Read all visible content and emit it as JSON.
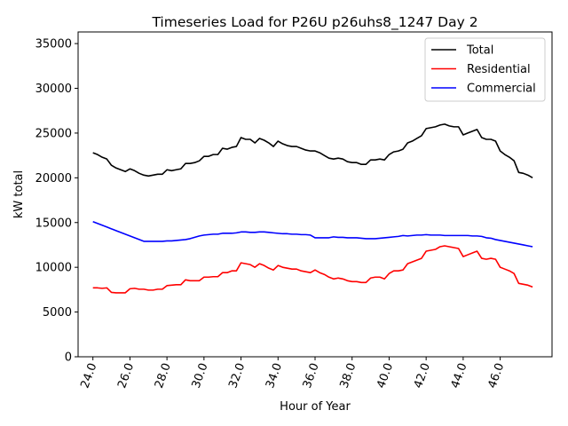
{
  "chart_data": {
    "type": "line",
    "title": "Timeseries Load for P26U p26uhs8_1247  Day 2",
    "xlabel": "Hour of Year",
    "ylabel": "kW total",
    "xlim": [
      23.2,
      48.8
    ],
    "ylim": [
      0,
      36300
    ],
    "x_ticks": [
      24,
      26,
      28,
      30,
      32,
      34,
      36,
      38,
      40,
      42,
      44,
      46
    ],
    "x_tick_labels": [
      "24.0",
      "26.0",
      "28.0",
      "30.0",
      "32.0",
      "34.0",
      "36.0",
      "38.0",
      "40.0",
      "42.0",
      "44.0",
      "46.0"
    ],
    "y_ticks": [
      0,
      5000,
      10000,
      15000,
      20000,
      25000,
      30000,
      35000
    ],
    "y_tick_labels": [
      "0",
      "5000",
      "10000",
      "15000",
      "20000",
      "25000",
      "30000",
      "35000"
    ],
    "grid": false,
    "legend_position": "top-right",
    "x_start": 24.0,
    "x_step": 0.25,
    "series": [
      {
        "name": "Total",
        "color": "#000000",
        "values": [
          22800,
          22600,
          22300,
          22100,
          21400,
          21100,
          20900,
          20700,
          21000,
          20800,
          20500,
          20300,
          20200,
          20300,
          20400,
          20400,
          20900,
          20800,
          20900,
          21000,
          21600,
          21600,
          21700,
          21900,
          22400,
          22400,
          22600,
          22600,
          23300,
          23200,
          23400,
          23500,
          24500,
          24300,
          24300,
          23900,
          24400,
          24200,
          23900,
          23500,
          24100,
          23800,
          23600,
          23500,
          23500,
          23300,
          23100,
          23000,
          23000,
          22800,
          22500,
          22200,
          22100,
          22200,
          22100,
          21800,
          21700,
          21700,
          21500,
          21500,
          22000,
          22000,
          22100,
          22000,
          22600,
          22900,
          23000,
          23200,
          23900,
          24100,
          24400,
          24700,
          25500,
          25600,
          25700,
          25900,
          26000,
          25800,
          25700,
          25700,
          24800,
          25000,
          25200,
          25400,
          24500,
          24300,
          24300,
          24100,
          23000,
          22600,
          22300,
          21900,
          20600,
          20500,
          20300,
          20000
        ]
      },
      {
        "name": "Residential",
        "color": "#ff0000",
        "values": [
          7700,
          7700,
          7650,
          7700,
          7200,
          7150,
          7150,
          7150,
          7600,
          7650,
          7550,
          7550,
          7450,
          7450,
          7550,
          7550,
          7950,
          8000,
          8050,
          8050,
          8600,
          8500,
          8500,
          8500,
          8900,
          8900,
          8950,
          8950,
          9400,
          9400,
          9600,
          9600,
          10500,
          10400,
          10300,
          10000,
          10400,
          10200,
          9900,
          9700,
          10200,
          10000,
          9900,
          9800,
          9800,
          9600,
          9500,
          9400,
          9700,
          9400,
          9200,
          8900,
          8700,
          8800,
          8700,
          8500,
          8400,
          8400,
          8300,
          8300,
          8800,
          8900,
          8900,
          8700,
          9300,
          9600,
          9600,
          9700,
          10400,
          10600,
          10800,
          11000,
          11800,
          11900,
          12000,
          12300,
          12400,
          12300,
          12200,
          12100,
          11200,
          11400,
          11600,
          11800,
          11000,
          10900,
          11000,
          10900,
          10000,
          9800,
          9600,
          9300,
          8200,
          8100,
          8000,
          7800
        ]
      },
      {
        "name": "Commercial",
        "color": "#0000ff",
        "values": [
          15100,
          14900,
          14700,
          14500,
          14300,
          14100,
          13900,
          13700,
          13500,
          13300,
          13100,
          12900,
          12900,
          12900,
          12900,
          12900,
          12950,
          12950,
          13000,
          13050,
          13100,
          13200,
          13350,
          13500,
          13600,
          13650,
          13700,
          13700,
          13800,
          13800,
          13800,
          13850,
          13950,
          13950,
          13900,
          13900,
          13950,
          13950,
          13900,
          13850,
          13800,
          13750,
          13750,
          13700,
          13700,
          13650,
          13650,
          13600,
          13300,
          13300,
          13300,
          13300,
          13400,
          13350,
          13350,
          13300,
          13300,
          13300,
          13250,
          13200,
          13200,
          13200,
          13250,
          13300,
          13350,
          13400,
          13450,
          13550,
          13500,
          13550,
          13600,
          13600,
          13650,
          13600,
          13600,
          13600,
          13550,
          13550,
          13550,
          13550,
          13550,
          13550,
          13500,
          13500,
          13450,
          13300,
          13250,
          13100,
          13000,
          12900,
          12800,
          12700,
          12600,
          12500,
          12400,
          12300
        ]
      }
    ]
  }
}
